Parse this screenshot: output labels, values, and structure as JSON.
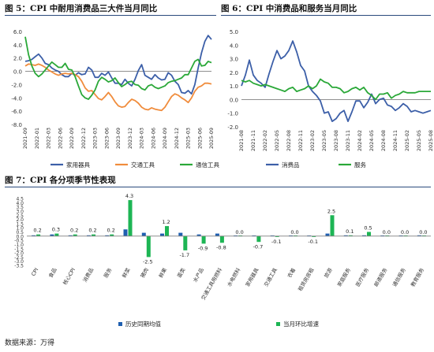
{
  "source_note": "数据来源：万得",
  "chart_data": [
    {
      "type": "line",
      "title": "图 5：CPI 中耐用消费品三大件当月同比",
      "x_ticks": [
        "2021-09",
        "2022-01",
        "2022-03",
        "2022-06",
        "2022-09",
        "2022-12",
        "2023-03",
        "2023-06",
        "2023-09",
        "2023-12",
        "2024-03",
        "2024-06",
        "2024-09",
        "2024-12",
        "2025-03",
        "2025-06",
        "2025-09"
      ],
      "ylim": [
        -8.0,
        6.0
      ],
      "y_ticks": [
        "6.0",
        "4.0",
        "2.0",
        "0.0",
        "-2.0",
        "-4.0",
        "-6.0",
        "-8.0"
      ],
      "y_tick_values": [
        6,
        4,
        2,
        0,
        -2,
        -4,
        -6,
        -8
      ],
      "series": [
        {
          "name": "家用器具",
          "color": "#3c5fa8",
          "values": [
            1.5,
            1.6,
            1.8,
            2.2,
            2.6,
            2.0,
            1.2,
            1.0,
            0.5,
            0.2,
            0.0,
            -0.5,
            -0.8,
            -0.8,
            -0.3,
            -0.6,
            -0.2,
            -0.5,
            -0.4,
            0.6,
            0.2,
            -0.9,
            -0.9,
            -0.3,
            -0.6,
            -0.1,
            -1.0,
            -1.8,
            -1.8,
            -2.0,
            -1.2,
            -1.8,
            -2.2,
            -1.2,
            0.1,
            1.0,
            -0.6,
            -0.9,
            -1.2,
            -0.5,
            -1.0,
            -1.3,
            -1.2,
            -0.2,
            -0.6,
            -1.5,
            -2.0,
            -3.2,
            -3.3,
            -2.9,
            -3.4,
            -2.0,
            0.5,
            2.8,
            4.5,
            5.4,
            4.8
          ]
        },
        {
          "name": "交通工具",
          "color": "#f08c3c",
          "values": [
            0.8,
            1.1,
            1.0,
            0.9,
            1.1,
            0.9,
            0.6,
            0.2,
            -0.1,
            -0.4,
            -0.6,
            -0.4,
            -0.3,
            -0.4,
            -0.3,
            -0.5,
            -0.8,
            -1.5,
            -2.5,
            -3.0,
            -2.9,
            -3.5,
            -4.1,
            -4.3,
            -3.8,
            -3.2,
            -3.8,
            -4.6,
            -5.2,
            -5.4,
            -5.3,
            -4.7,
            -4.2,
            -4.4,
            -4.8,
            -5.4,
            -5.7,
            -5.8,
            -5.5,
            -5.7,
            -5.8,
            -5.9,
            -5.4,
            -4.6,
            -3.8,
            -3.4,
            -3.6,
            -4.0,
            -4.3,
            -4.7,
            -4.0,
            -3.0,
            -2.4,
            -2.2,
            -1.8,
            -1.8,
            -1.9
          ]
        },
        {
          "name": "通信工具",
          "color": "#2aa838",
          "values": [
            5.2,
            2.5,
            0.8,
            -0.3,
            -0.8,
            -0.4,
            0.2,
            0.8,
            1.4,
            1.0,
            0.6,
            0.6,
            1.2,
            0.3,
            0.2,
            -0.8,
            -2.2,
            -3.5,
            -4.0,
            -4.2,
            -3.6,
            -2.8,
            -1.5,
            -0.9,
            -1.2,
            -1.6,
            -1.4,
            -1.0,
            -1.7,
            -2.3,
            -2.0,
            -1.6,
            -1.5,
            -2.0,
            -2.1,
            -2.6,
            -2.8,
            -2.2,
            -2.0,
            -2.4,
            -2.6,
            -2.4,
            -2.2,
            -1.7,
            -1.5,
            -1.4,
            -1.2,
            -1.0,
            -0.5,
            -0.5,
            0.5,
            1.5,
            1.8,
            0.8,
            0.9,
            1.5,
            1.3
          ]
        }
      ]
    },
    {
      "type": "line",
      "title": "图 6：CPI 中消费品和服务当月同比",
      "x_ticks": [
        "2021-08",
        "2021-11",
        "2022-02",
        "2022-05",
        "2022-08",
        "2022-11",
        "2023-02",
        "2023-05",
        "2023-08",
        "2023-11",
        "2024-02",
        "2024-05",
        "2024-08",
        "2024-11",
        "2025-02",
        "2025-05",
        "2025-08"
      ],
      "ylim": [
        -2.0,
        5.0
      ],
      "y_ticks": [
        "5.0",
        "4.0",
        "3.0",
        "2.0",
        "1.0",
        "0.0",
        "-1.0",
        "-2.0"
      ],
      "y_tick_values": [
        5,
        4,
        3,
        2,
        1,
        0,
        -1,
        -2
      ],
      "series": [
        {
          "name": "消费品",
          "color": "#3c5fa8",
          "values": [
            1.0,
            1.8,
            2.9,
            1.8,
            1.4,
            1.2,
            0.9,
            1.9,
            2.8,
            3.6,
            3.0,
            3.2,
            3.6,
            4.3,
            3.5,
            2.5,
            2.1,
            1.0,
            0.6,
            0.3,
            -0.1,
            -1.0,
            -0.9,
            -1.6,
            -1.4,
            -1.0,
            -0.8,
            -1.6,
            -0.9,
            -0.1,
            -0.1,
            -0.6,
            -0.2,
            0.4,
            -0.3,
            0.0,
            0.1,
            -0.4,
            -0.5,
            -0.8,
            -0.6,
            -0.3,
            -0.5,
            -0.9,
            -0.8,
            -0.9,
            -1.0,
            -0.9,
            -0.8
          ]
        },
        {
          "name": "服务",
          "color": "#2aa838",
          "values": [
            1.4,
            1.3,
            1.4,
            1.2,
            1.1,
            1.0,
            1.1,
            1.0,
            0.9,
            0.8,
            0.7,
            0.6,
            0.8,
            0.9,
            0.6,
            0.7,
            0.8,
            1.0,
            0.8,
            1.0,
            1.5,
            1.3,
            1.2,
            0.9,
            0.9,
            0.8,
            0.5,
            0.6,
            0.8,
            0.9,
            0.7,
            0.9,
            0.5,
            0.3,
            0.0,
            0.4,
            0.4,
            0.5,
            0.1,
            0.3,
            0.4,
            0.6,
            0.5,
            0.5,
            0.5,
            0.6,
            0.6,
            0.6,
            0.6
          ]
        }
      ]
    },
    {
      "type": "bar",
      "title": "图 7：CPI 各分项季节性表现",
      "categories": [
        "CPI",
        "食品",
        "核心CPI",
        "消费品",
        "服务",
        "鲜菜",
        "猪肉",
        "鲜果",
        "蛋类",
        "水产品",
        "交通工具用燃料",
        "水电燃料",
        "家用器具",
        "交通工具",
        "衣着",
        "租赁房房租",
        "旅游",
        "家庭服务",
        "医疗服务",
        "邮递服务",
        "通信服务",
        "教育服务"
      ],
      "ylim": [
        -3.5,
        4.5
      ],
      "y_ticks": [
        "4.5",
        "4.0",
        "3.5",
        "3.0",
        "2.5",
        "2.0",
        "1.5",
        "1.0",
        "0.5",
        "0.0",
        "-0.5",
        "-1.0",
        "-1.5",
        "-2.0",
        "-2.5",
        "-3.0",
        "-3.5"
      ],
      "y_tick_values": [
        4.5,
        4,
        3.5,
        3,
        2.5,
        2,
        1.5,
        1,
        0.5,
        0,
        -0.5,
        -1,
        -1.5,
        -2,
        -2.5,
        -3,
        -3.5
      ],
      "series": [
        {
          "name": "历史同期均值",
          "color": "#1f5fb0",
          "values": [
            0.1,
            0.2,
            0.1,
            0.1,
            0.1,
            0.8,
            0.4,
            0.3,
            0.4,
            0.2,
            0.3,
            0.0,
            0.0,
            0.0,
            0.0,
            0.0,
            0.3,
            0.1,
            0.1,
            0.0,
            0.0,
            0.1
          ]
        },
        {
          "name": "当月环比增速",
          "color": "#1db554",
          "values": [
            0.2,
            0.3,
            0.2,
            0.2,
            0.2,
            4.3,
            -2.5,
            1.2,
            -1.7,
            -0.9,
            -0.8,
            0.0,
            -0.7,
            -0.1,
            0.0,
            -0.1,
            2.5,
            0.1,
            0.5,
            0.0,
            0.0,
            0.0
          ]
        }
      ],
      "value_labels": [
        "0.2",
        "0.3",
        "0.2",
        "0.2",
        "0.2",
        "4.3",
        "-2.5",
        "1.2",
        "-1.7",
        "-0.9",
        "-0.8",
        "0.0",
        "-0.7",
        "-0.1",
        "0.0",
        "-0.1",
        "2.5",
        "0.1",
        "0.5",
        "0.0",
        "0.0",
        "0.0"
      ]
    }
  ]
}
